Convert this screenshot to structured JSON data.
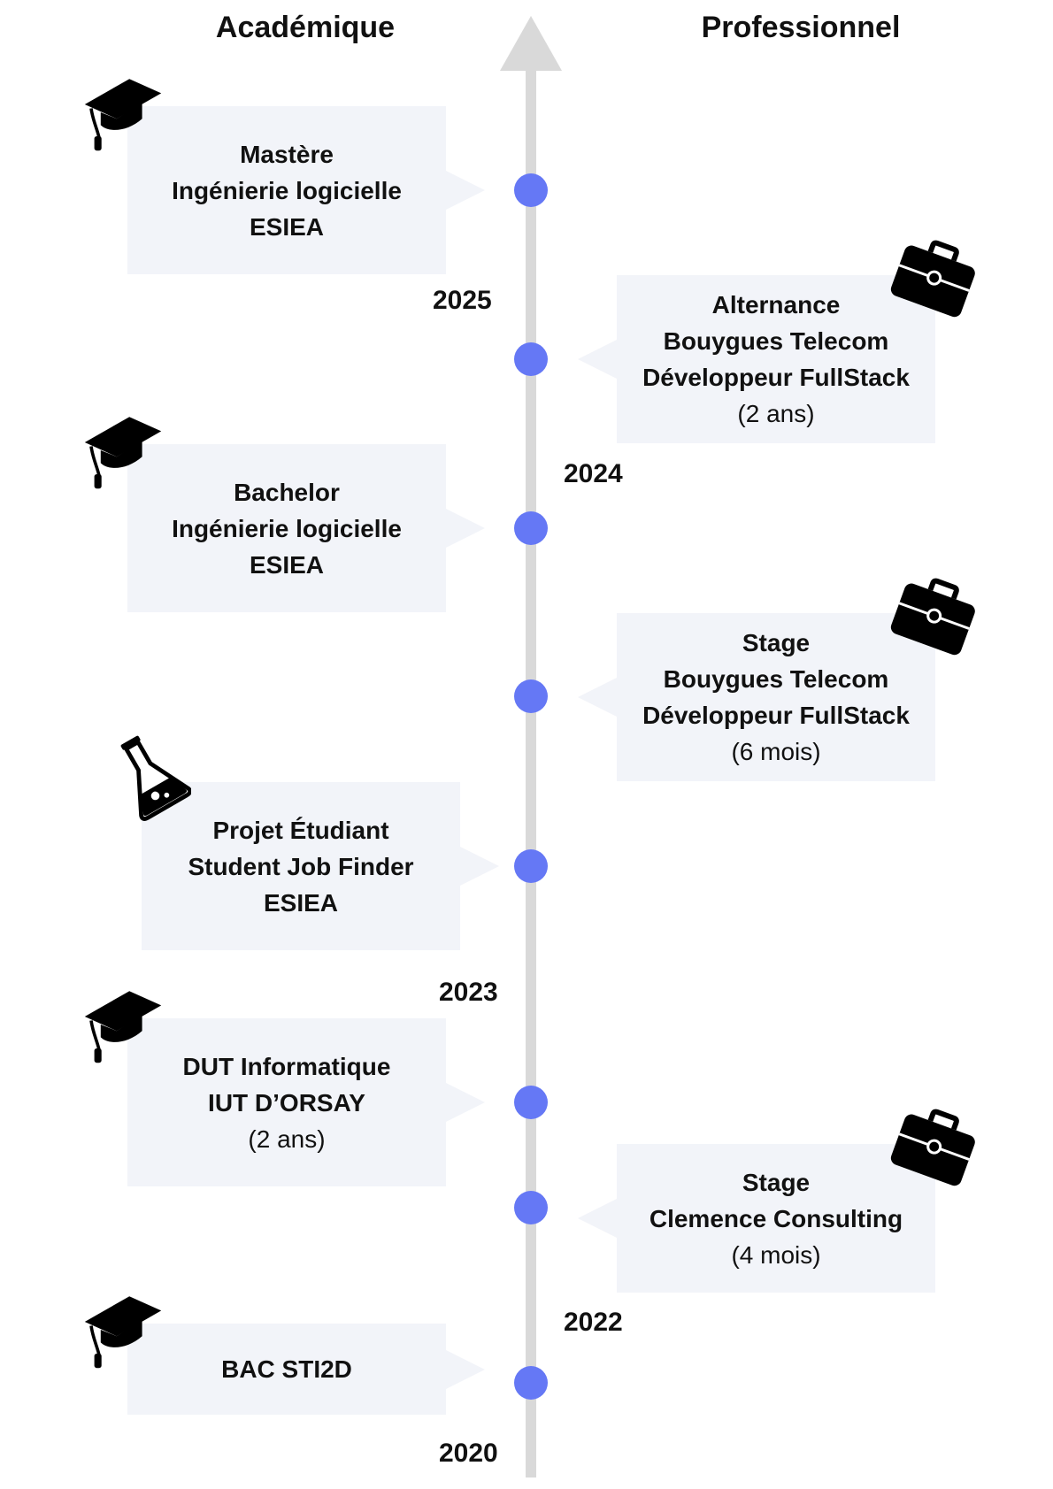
{
  "headers": {
    "academic": "Académique",
    "professional": "Professionnel"
  },
  "colors": {
    "dot": "#6578f5",
    "axis": "#d9d9d9",
    "card": "#f2f4f9"
  },
  "years": [
    "2025",
    "2024",
    "2023",
    "2022",
    "2020"
  ],
  "academic": [
    {
      "icon": "graduation-cap-icon",
      "lines": [
        "Mastère",
        "Ingénierie logicielle",
        "ESIEA"
      ]
    },
    {
      "icon": "graduation-cap-icon",
      "lines": [
        "Bachelor",
        "Ingénierie logicielle",
        "ESIEA"
      ]
    },
    {
      "icon": "flask-icon",
      "lines": [
        "Projet Étudiant",
        "Student Job Finder",
        "ESIEA"
      ]
    },
    {
      "icon": "graduation-cap-icon",
      "lines": [
        "DUT Informatique",
        "IUT D’ORSAY"
      ],
      "note": "(2 ans)"
    },
    {
      "icon": "graduation-cap-icon",
      "lines": [
        "BAC STI2D"
      ]
    }
  ],
  "professional": [
    {
      "icon": "briefcase-icon",
      "lines": [
        "Alternance",
        "Bouygues Telecom",
        "Développeur FullStack"
      ],
      "note": "(2 ans)"
    },
    {
      "icon": "briefcase-icon",
      "lines": [
        "Stage",
        "Bouygues Telecom",
        "Développeur FullStack"
      ],
      "note": "(6 mois)"
    },
    {
      "icon": "briefcase-icon",
      "lines": [
        "Stage",
        "Clemence Consulting"
      ],
      "note": "(4 mois)"
    }
  ]
}
